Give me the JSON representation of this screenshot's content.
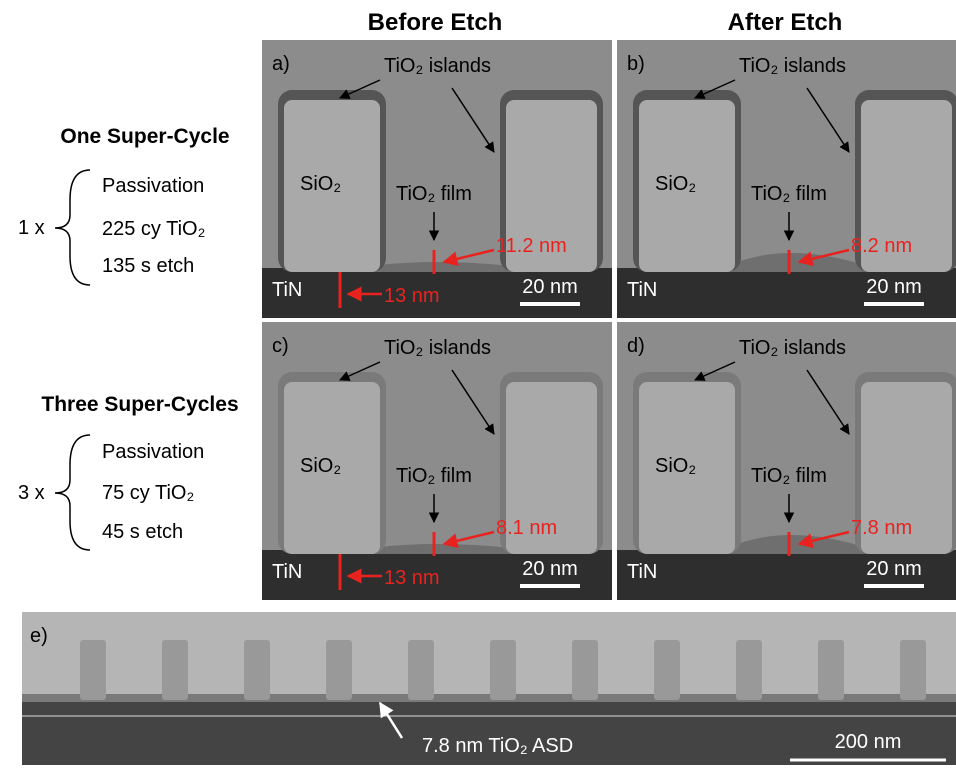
{
  "headers": [
    "Before Etch",
    "After Etch"
  ],
  "rows": [
    {
      "title": "One Super-Cycle",
      "multiplier": "1 x",
      "steps": [
        "Passivation",
        "225 cy TiO₂",
        "135 s etch"
      ]
    },
    {
      "title": "Three Super-Cycles",
      "multiplier": "3 x",
      "steps": [
        "Passivation",
        "75 cy TiO₂",
        "45 s etch"
      ]
    }
  ],
  "panels": [
    {
      "label": "a)",
      "islands": "TiO₂ islands",
      "pillar": "SiO₂",
      "film": "TiO₂ film",
      "film_thickness": "11.2 nm",
      "substrate": "TiN",
      "substrate_thickness": "13 nm",
      "scale": "20 nm"
    },
    {
      "label": "b)",
      "islands": "TiO₂ islands",
      "pillar": "SiO₂",
      "film": "TiO₂ film",
      "film_thickness": "8.2 nm",
      "substrate": "TiN",
      "scale": "20 nm"
    },
    {
      "label": "c)",
      "islands": "TiO₂ islands",
      "pillar": "SiO₂",
      "film": "TiO₂ film",
      "film_thickness": "8.1 nm",
      "substrate": "TiN",
      "substrate_thickness": "13 nm",
      "scale": "20 nm"
    },
    {
      "label": "d)",
      "islands": "TiO₂ islands",
      "pillar": "SiO₂",
      "film": "TiO₂ film",
      "film_thickness": "7.8 nm",
      "substrate": "TiN",
      "scale": "20 nm"
    }
  ],
  "overview": {
    "label": "e)",
    "annotation": "7.8 nm TiO₂  ASD",
    "scale": "200 nm"
  }
}
